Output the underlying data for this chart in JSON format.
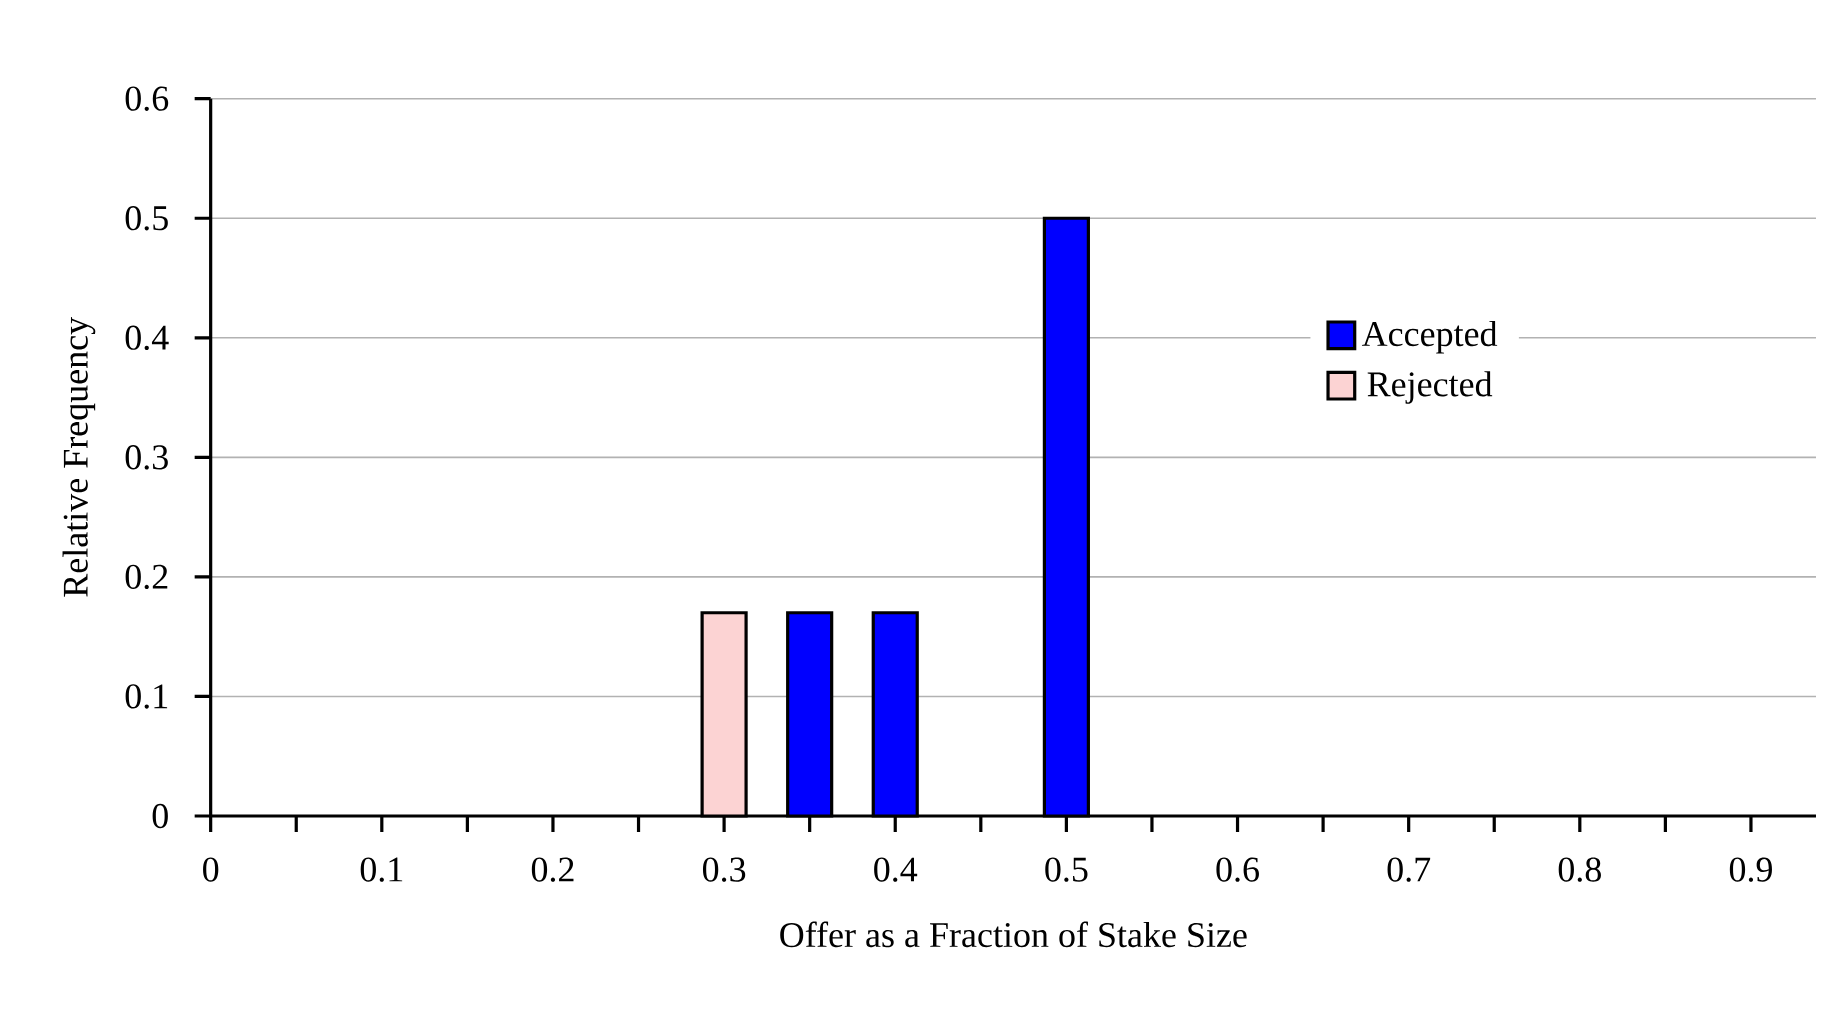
{
  "chart_data": {
    "type": "bar",
    "xlabel": "Offer as a Fraction of Stake Size",
    "ylabel": "Relative Frequency",
    "series": [
      {
        "name": "Accepted",
        "color": "#0000ff",
        "x": [
          0.35,
          0.4,
          0.5
        ],
        "values": [
          0.17,
          0.17,
          0.5
        ]
      },
      {
        "name": "Rejected",
        "color": "#fcd3d3",
        "x": [
          0.3
        ],
        "values": [
          0.17
        ]
      }
    ],
    "xlim": [
      0,
      0.938
    ],
    "xticks": [
      0,
      {
        "value": 0.05,
        "label": null
      },
      0.1,
      {
        "value": 0.15,
        "label": null
      },
      0.2,
      {
        "value": 0.25,
        "label": null
      },
      0.3,
      {
        "value": 0.35,
        "label": null
      },
      0.4,
      {
        "value": 0.45,
        "label": null
      },
      0.5,
      {
        "value": 0.55,
        "label": null
      },
      0.6,
      {
        "value": 0.65,
        "label": null
      },
      0.7,
      {
        "value": 0.75,
        "label": null
      },
      0.8,
      {
        "value": 0.85,
        "label": null
      },
      0.9
    ],
    "ylim": [
      0,
      0.6
    ],
    "yticks": [
      0,
      0.1,
      0.2,
      0.3,
      0.4,
      0.5,
      0.6
    ],
    "grid": "y",
    "legend": "right"
  }
}
